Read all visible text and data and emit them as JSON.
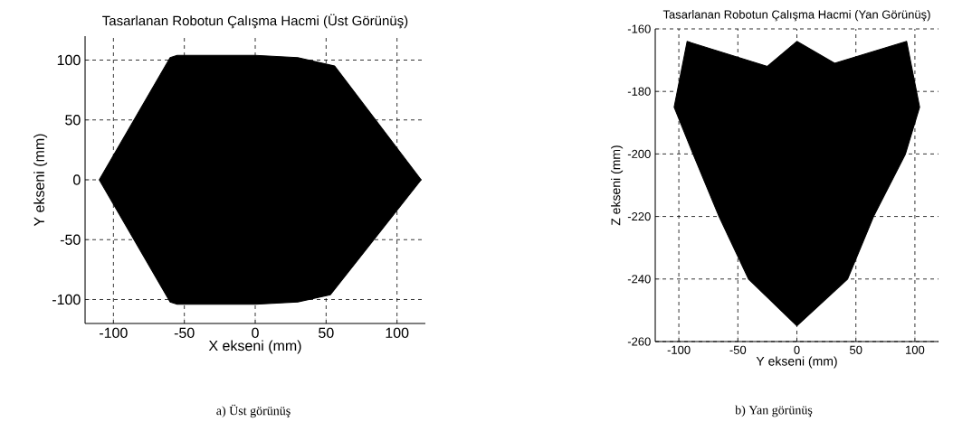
{
  "chart_data": [
    {
      "type": "area",
      "title": "Tasarlanan Robotun Çalışma Hacmi (Üst Görünüş)",
      "xlabel": "X ekseni (mm)",
      "ylabel": "Y ekseni (mm)",
      "xlim": [
        -120,
        120
      ],
      "ylim": [
        -120,
        120
      ],
      "xticks": [
        -100,
        -50,
        0,
        50,
        100
      ],
      "yticks": [
        -100,
        -50,
        0,
        50,
        100
      ],
      "grid": true,
      "series": [
        {
          "color": "#000000",
          "x": [
            -110,
            -60,
            -55,
            0,
            30,
            56,
            117,
            53,
            30,
            0,
            -55,
            -60,
            -110
          ],
          "values": [
            0,
            102,
            104,
            104,
            102,
            95,
            0,
            -96,
            -102,
            -104,
            -104,
            -102,
            0
          ]
        }
      ],
      "annotations": [
        "a) Üst görünüş"
      ]
    },
    {
      "type": "area",
      "title": "Tasarlanan Robotun Çalışma Hacmi (Yan Görünüş)",
      "xlabel": "Y ekseni (mm)",
      "ylabel": "Z ekseni (mm)",
      "xlim": [
        -120,
        120
      ],
      "ylim": [
        -260,
        -160
      ],
      "xticks": [
        -100,
        -50,
        0,
        50,
        100
      ],
      "yticks": [
        -260,
        -240,
        -220,
        -200,
        -180,
        -160
      ],
      "grid": true,
      "series": [
        {
          "color": "#000000",
          "x": [
            -104,
            -93,
            -25,
            0,
            32,
            93,
            104,
            92,
            65,
            43,
            0,
            -41,
            -66,
            -88,
            -104
          ],
          "values": [
            -185,
            -164,
            -172,
            -164,
            -171,
            -164,
            -185,
            -200,
            -220,
            -240,
            -255,
            -240,
            -220,
            -200,
            -185
          ]
        }
      ],
      "annotations": [
        "b) Yan görünüş"
      ]
    }
  ]
}
